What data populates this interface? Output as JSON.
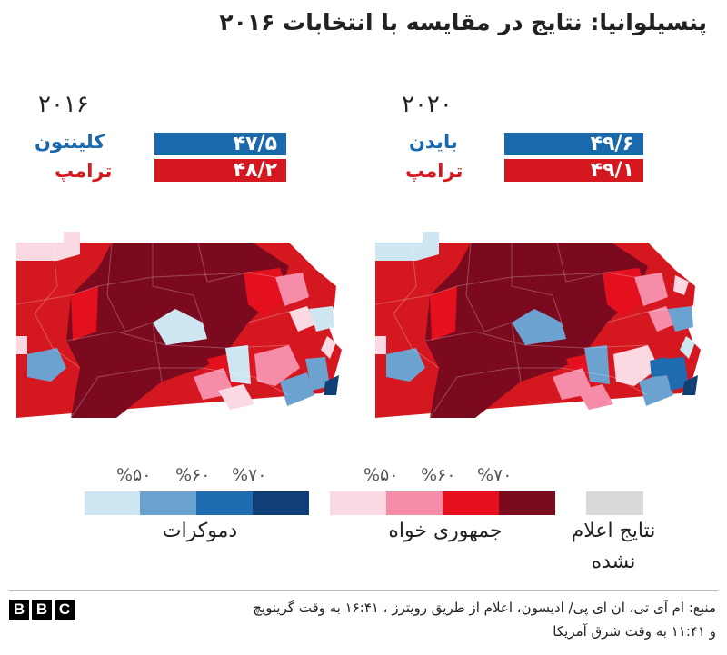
{
  "title": "پنسیلوانیا: نتایج در مقایسه با انتخابات ۲۰۱۶",
  "panels": {
    "y2016": {
      "year": "۲۰۱۶",
      "dem": {
        "name": "کلینتون",
        "value_label": "۴۷/۵",
        "percent": 47.5
      },
      "rep": {
        "name": "ترامپ",
        "value_label": "۴۸/۲",
        "percent": 48.2
      }
    },
    "y2020": {
      "year": "۲۰۲۰",
      "dem": {
        "name": "بایدن",
        "value_label": "۴۹/۶",
        "percent": 49.6
      },
      "rep": {
        "name": "ترامپ",
        "value_label": "۴۹/۱",
        "percent": 49.1
      }
    }
  },
  "legend": {
    "dem_label": "دموکرات",
    "rep_label": "جمهوری خواه",
    "none_label_1": "نتایج اعلام",
    "none_label_2": "نشده",
    "thresholds": [
      "%۵۰",
      "%۶۰",
      "%۷۰"
    ],
    "dem_colors": [
      "#cde6f2",
      "#6ba2cf",
      "#1f6bb0",
      "#0f3f74"
    ],
    "rep_colors": [
      "#fbd9e3",
      "#f58ca8",
      "#e4101d",
      "#7c0a1f"
    ],
    "none_color": "#d9d9d9"
  },
  "source": {
    "line1": "منبع: ام آی تی، ان ای پی/ ادیسون، اعلام از طریق رویترز ، ۱۶:۴۱ به وقت گرینویچ",
    "line2": "و ۱۱:۴۱ به وقت شرق آمریکا"
  },
  "logo": {
    "letters": [
      "B",
      "B",
      "C"
    ]
  }
}
